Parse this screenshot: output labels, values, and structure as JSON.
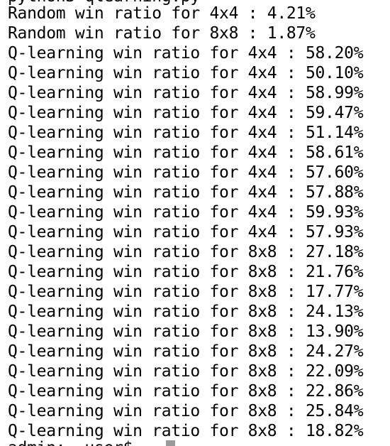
{
  "terminal": {
    "top_partial_line": "python3 qlearning.py",
    "lines": [
      "Random win ratio for 4x4 : 4.21%",
      "Random win ratio for 8x8 : 1.87%",
      "Q-learning win ratio for 4x4 : 58.20%",
      "Q-learning win ratio for 4x4 : 50.10%",
      "Q-learning win ratio for 4x4 : 58.99%",
      "Q-learning win ratio for 4x4 : 59.47%",
      "Q-learning win ratio for 4x4 : 51.14%",
      "Q-learning win ratio for 4x4 : 58.61%",
      "Q-learning win ratio for 4x4 : 57.60%",
      "Q-learning win ratio for 4x4 : 57.88%",
      "Q-learning win ratio for 4x4 : 59.93%",
      "Q-learning win ratio for 4x4 : 57.93%",
      "Q-learning win ratio for 8x8 : 27.18%",
      "Q-learning win ratio for 8x8 : 21.76%",
      "Q-learning win ratio for 8x8 : 17.77%",
      "Q-learning win ratio for 8x8 : 24.13%",
      "Q-learning win ratio for 8x8 : 13.90%",
      "Q-learning win ratio for 8x8 : 24.27%",
      "Q-learning win ratio for 8x8 : 22.09%",
      "Q-learning win ratio for 8x8 : 22.86%",
      "Q-learning win ratio for 8x8 : 25.84%",
      "Q-learning win ratio for 8x8 : 18.82%"
    ],
    "prompt_partial": "admin:~ user$ "
  },
  "colors": {
    "background": "#ffffff",
    "text": "#000000",
    "cursor": "#9a9a9a"
  }
}
